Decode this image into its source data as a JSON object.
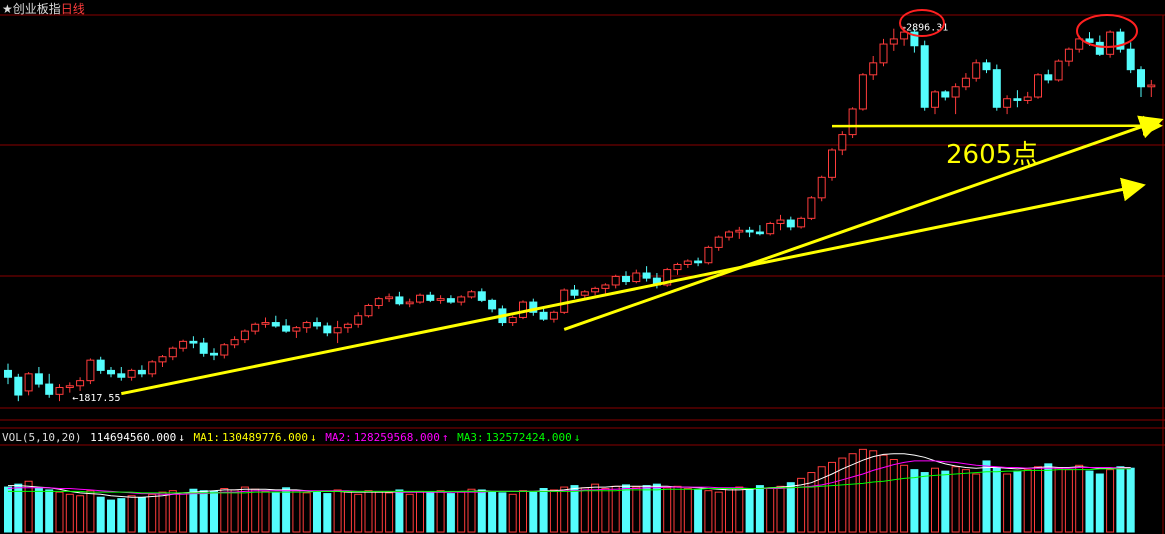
{
  "header": {
    "star": "★",
    "index_name": "创业板指",
    "period": "日线"
  },
  "annotations": {
    "high_label": "2896.31",
    "low_label": "1817.55",
    "level_label": "2605点",
    "arrow_glyph": "←"
  },
  "volume_legend": {
    "label": "VOL(5,10,20)",
    "vol_value": "114694560.000",
    "vol_arrow": "↓",
    "ma1_label": "MA1:",
    "ma1_value": "130489776.000",
    "ma1_arrow": "↓",
    "ma2_label": "MA2:",
    "ma2_value": "128259568.000",
    "ma2_arrow": "↑",
    "ma3_label": "MA3:",
    "ma3_value": "132572424.000",
    "ma3_arrow": "↓"
  },
  "colors": {
    "up": "#ff3c3c",
    "down": "#54fcfc",
    "grid": "#8a0000",
    "trend": "#ffff00",
    "ellipse": "#ff2020",
    "ma1": "#ffffff",
    "ma2": "#ff00ff",
    "ma3": "#00ff00"
  },
  "chart_data": {
    "type": "candlestick",
    "ylim": [
      1780,
      2930
    ],
    "ohlc": [
      [
        1890,
        1910,
        1850,
        1870
      ],
      [
        1870,
        1880,
        1800,
        1818
      ],
      [
        1830,
        1885,
        1817,
        1880
      ],
      [
        1880,
        1900,
        1840,
        1850
      ],
      [
        1850,
        1880,
        1810,
        1820
      ],
      [
        1820,
        1850,
        1800,
        1840
      ],
      [
        1840,
        1855,
        1825,
        1845
      ],
      [
        1845,
        1870,
        1830,
        1860
      ],
      [
        1860,
        1925,
        1850,
        1920
      ],
      [
        1920,
        1930,
        1880,
        1890
      ],
      [
        1890,
        1900,
        1870,
        1880
      ],
      [
        1880,
        1900,
        1860,
        1870
      ],
      [
        1870,
        1895,
        1860,
        1890
      ],
      [
        1890,
        1905,
        1870,
        1880
      ],
      [
        1880,
        1920,
        1870,
        1915
      ],
      [
        1915,
        1935,
        1900,
        1930
      ],
      [
        1930,
        1960,
        1920,
        1955
      ],
      [
        1955,
        1980,
        1945,
        1975
      ],
      [
        1975,
        1990,
        1955,
        1970
      ],
      [
        1970,
        1985,
        1930,
        1940
      ],
      [
        1940,
        1955,
        1920,
        1935
      ],
      [
        1935,
        1970,
        1925,
        1965
      ],
      [
        1965,
        1990,
        1955,
        1980
      ],
      [
        1980,
        2010,
        1970,
        2005
      ],
      [
        2005,
        2030,
        1995,
        2025
      ],
      [
        2025,
        2045,
        2015,
        2030
      ],
      [
        2030,
        2050,
        2015,
        2020
      ],
      [
        2020,
        2040,
        2000,
        2005
      ],
      [
        2005,
        2020,
        1985,
        2015
      ],
      [
        2015,
        2035,
        2000,
        2030
      ],
      [
        2030,
        2045,
        2010,
        2020
      ],
      [
        2020,
        2030,
        1990,
        2000
      ],
      [
        2000,
        2035,
        1970,
        2015
      ],
      [
        2015,
        2030,
        2000,
        2025
      ],
      [
        2025,
        2060,
        2015,
        2050
      ],
      [
        2050,
        2085,
        2045,
        2080
      ],
      [
        2080,
        2105,
        2070,
        2100
      ],
      [
        2100,
        2115,
        2090,
        2105
      ],
      [
        2105,
        2120,
        2080,
        2085
      ],
      [
        2085,
        2100,
        2075,
        2090
      ],
      [
        2090,
        2115,
        2085,
        2110
      ],
      [
        2110,
        2120,
        2090,
        2095
      ],
      [
        2095,
        2110,
        2085,
        2100
      ],
      [
        2100,
        2110,
        2085,
        2090
      ],
      [
        2090,
        2110,
        2080,
        2105
      ],
      [
        2105,
        2125,
        2100,
        2120
      ],
      [
        2120,
        2130,
        2090,
        2095
      ],
      [
        2095,
        2100,
        2060,
        2070
      ],
      [
        2070,
        2080,
        2020,
        2030
      ],
      [
        2030,
        2050,
        2020,
        2045
      ],
      [
        2045,
        2095,
        2040,
        2090
      ],
      [
        2090,
        2100,
        2050,
        2060
      ],
      [
        2060,
        2075,
        2035,
        2040
      ],
      [
        2040,
        2065,
        2030,
        2060
      ],
      [
        2060,
        2130,
        2055,
        2125
      ],
      [
        2125,
        2140,
        2100,
        2110
      ],
      [
        2110,
        2125,
        2100,
        2120
      ],
      [
        2120,
        2135,
        2110,
        2130
      ],
      [
        2130,
        2145,
        2115,
        2140
      ],
      [
        2140,
        2170,
        2130,
        2165
      ],
      [
        2165,
        2180,
        2140,
        2150
      ],
      [
        2150,
        2185,
        2145,
        2175
      ],
      [
        2175,
        2195,
        2150,
        2160
      ],
      [
        2160,
        2175,
        2130,
        2140
      ],
      [
        2140,
        2190,
        2135,
        2185
      ],
      [
        2185,
        2205,
        2170,
        2200
      ],
      [
        2200,
        2215,
        2190,
        2210
      ],
      [
        2210,
        2220,
        2195,
        2205
      ],
      [
        2205,
        2255,
        2200,
        2250
      ],
      [
        2250,
        2285,
        2240,
        2280
      ],
      [
        2280,
        2300,
        2270,
        2295
      ],
      [
        2295,
        2310,
        2275,
        2300
      ],
      [
        2300,
        2310,
        2280,
        2295
      ],
      [
        2295,
        2315,
        2285,
        2290
      ],
      [
        2290,
        2325,
        2285,
        2320
      ],
      [
        2320,
        2345,
        2300,
        2330
      ],
      [
        2330,
        2340,
        2300,
        2310
      ],
      [
        2310,
        2340,
        2305,
        2335
      ],
      [
        2335,
        2400,
        2330,
        2395
      ],
      [
        2395,
        2460,
        2385,
        2455
      ],
      [
        2455,
        2540,
        2445,
        2535
      ],
      [
        2535,
        2590,
        2520,
        2580
      ],
      [
        2580,
        2660,
        2570,
        2655
      ],
      [
        2655,
        2760,
        2650,
        2755
      ],
      [
        2755,
        2810,
        2740,
        2790
      ],
      [
        2790,
        2860,
        2780,
        2845
      ],
      [
        2845,
        2890,
        2825,
        2860
      ],
      [
        2860,
        2896,
        2840,
        2880
      ],
      [
        2880,
        2890,
        2820,
        2840
      ],
      [
        2840,
        2855,
        2650,
        2660
      ],
      [
        2660,
        2710,
        2640,
        2705
      ],
      [
        2705,
        2710,
        2680,
        2690
      ],
      [
        2690,
        2730,
        2640,
        2720
      ],
      [
        2720,
        2760,
        2710,
        2745
      ],
      [
        2745,
        2800,
        2735,
        2790
      ],
      [
        2790,
        2800,
        2760,
        2770
      ],
      [
        2770,
        2785,
        2650,
        2660
      ],
      [
        2660,
        2695,
        2640,
        2685
      ],
      [
        2685,
        2710,
        2660,
        2680
      ],
      [
        2680,
        2705,
        2670,
        2690
      ],
      [
        2690,
        2760,
        2685,
        2755
      ],
      [
        2755,
        2770,
        2730,
        2740
      ],
      [
        2740,
        2800,
        2735,
        2795
      ],
      [
        2795,
        2835,
        2780,
        2830
      ],
      [
        2830,
        2870,
        2820,
        2860
      ],
      [
        2860,
        2880,
        2840,
        2850
      ],
      [
        2850,
        2870,
        2810,
        2815
      ],
      [
        2815,
        2885,
        2805,
        2880
      ],
      [
        2880,
        2890,
        2820,
        2830
      ],
      [
        2830,
        2850,
        2760,
        2770
      ],
      [
        2770,
        2780,
        2690,
        2720
      ],
      [
        2720,
        2740,
        2690,
        2725
      ]
    ],
    "volume": [
      62,
      66,
      70,
      60,
      58,
      55,
      52,
      50,
      57,
      48,
      44,
      46,
      50,
      47,
      52,
      55,
      57,
      54,
      59,
      57,
      56,
      60,
      58,
      62,
      59,
      56,
      54,
      61,
      57,
      54,
      56,
      53,
      58,
      55,
      52,
      57,
      55,
      54,
      58,
      52,
      56,
      54,
      57,
      53,
      55,
      59,
      58,
      56,
      54,
      52,
      57,
      55,
      60,
      58,
      62,
      64,
      61,
      66,
      60,
      63,
      65,
      62,
      64,
      66,
      61,
      63,
      60,
      58,
      57,
      55,
      60,
      62,
      59,
      64,
      61,
      63,
      68,
      74,
      82,
      90,
      96,
      102,
      108,
      114,
      112,
      106,
      100,
      92,
      86,
      82,
      88,
      84,
      90,
      86,
      80,
      98,
      88,
      80,
      84,
      86,
      90,
      94,
      88,
      86,
      92,
      84,
      80,
      86,
      90,
      88
    ],
    "ma1": [
      64,
      64,
      63,
      62,
      61,
      59,
      56,
      54,
      53,
      52,
      50,
      49,
      48,
      48,
      49,
      50,
      52,
      54,
      55,
      56,
      57,
      58,
      58,
      59,
      59,
      59,
      58,
      58,
      58,
      57,
      56,
      56,
      56,
      55,
      55,
      55,
      55,
      55,
      55,
      55,
      55,
      55,
      55,
      55,
      56,
      56,
      57,
      56,
      56,
      56,
      56,
      56,
      57,
      57,
      58,
      60,
      61,
      62,
      62,
      63,
      63,
      63,
      63,
      63,
      63,
      62,
      62,
      61,
      60,
      59,
      58,
      58,
      59,
      60,
      61,
      62,
      63,
      65,
      68,
      74,
      80,
      87,
      93,
      99,
      104,
      107,
      108,
      108,
      106,
      103,
      98,
      94,
      91,
      89,
      88,
      89,
      89,
      88,
      87,
      88,
      89,
      90,
      89,
      89,
      90,
      89,
      88,
      88,
      89,
      89
    ],
    "ma2": [
      60,
      61,
      61,
      61,
      61,
      60,
      60,
      59,
      58,
      57,
      56,
      55,
      54,
      53,
      53,
      52,
      52,
      52,
      53,
      53,
      54,
      55,
      55,
      56,
      57,
      57,
      57,
      57,
      57,
      57,
      57,
      57,
      57,
      57,
      56,
      56,
      56,
      56,
      55,
      55,
      55,
      55,
      55,
      55,
      55,
      55,
      55,
      56,
      56,
      56,
      56,
      56,
      56,
      56,
      57,
      57,
      58,
      58,
      59,
      59,
      60,
      60,
      61,
      61,
      62,
      62,
      62,
      62,
      62,
      61,
      61,
      61,
      60,
      60,
      60,
      60,
      61,
      62,
      63,
      65,
      68,
      72,
      76,
      80,
      85,
      89,
      93,
      96,
      98,
      98,
      98,
      97,
      96,
      94,
      92,
      91,
      90,
      89,
      89,
      88,
      88,
      88,
      88,
      88,
      89,
      89,
      89,
      89,
      88,
      88
    ],
    "ma3": [
      56,
      56,
      56,
      56,
      56,
      56,
      56,
      56,
      55,
      55,
      55,
      55,
      55,
      54,
      54,
      54,
      54,
      54,
      54,
      54,
      54,
      54,
      54,
      54,
      55,
      55,
      55,
      55,
      55,
      55,
      56,
      56,
      56,
      56,
      56,
      56,
      56,
      56,
      56,
      56,
      56,
      56,
      56,
      56,
      56,
      56,
      56,
      56,
      56,
      56,
      56,
      56,
      56,
      56,
      56,
      56,
      57,
      57,
      57,
      57,
      58,
      58,
      58,
      58,
      59,
      59,
      59,
      59,
      60,
      60,
      60,
      60,
      60,
      60,
      61,
      61,
      61,
      62,
      62,
      63,
      64,
      65,
      66,
      67,
      69,
      70,
      72,
      74,
      75,
      77,
      78,
      79,
      80,
      81,
      82,
      83,
      83,
      84,
      84,
      85,
      85,
      85,
      86,
      86,
      86,
      86,
      87,
      87,
      87,
      87
    ]
  }
}
